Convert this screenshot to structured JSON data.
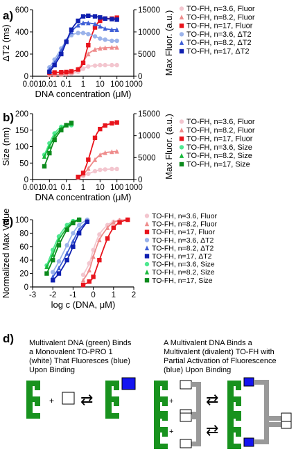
{
  "colors": {
    "pink": "#f3c6cf",
    "salmon": "#ee8c8c",
    "red": "#e8141c",
    "lightblue": "#9bb3ea",
    "blue": "#3f5fd6",
    "navy": "#1020b0",
    "lightgreen": "#4fe890",
    "green": "#18b83a",
    "darkgreen": "#0c8a1c",
    "grey": "#9a9a9a"
  },
  "chart_data": [
    {
      "panel_label": "a)",
      "type": "line",
      "x_scale": "log",
      "xlabel": "DNA concentration (μM)",
      "ylabel_left": "ΔT2 (ms)",
      "ylabel_right": "Max Fluor. (a.u.)",
      "xlim": [
        0.001,
        1000
      ],
      "ylim_left": [
        0,
        600
      ],
      "ylim_right": [
        0,
        15000
      ],
      "x_tick_labels": [
        "0.001",
        "0.01",
        "0.1",
        "1",
        "10",
        "100",
        "1000"
      ],
      "y_tick_labels_left": [
        "0",
        "200",
        "400",
        "600"
      ],
      "y_tick_labels_right": [
        "0",
        "5000",
        "10000",
        "15000"
      ],
      "x": [
        0.01,
        0.02,
        0.05,
        0.1,
        0.2,
        0.5,
        1,
        2,
        5,
        10,
        20,
        50,
        100
      ],
      "series": [
        {
          "name": "TO-FH, n=3.6, Fluor",
          "color": "pink",
          "marker": "circle",
          "axis": "right",
          "values": [
            300,
            330,
            380,
            450,
            600,
            1000,
            1700,
            2200,
            2400,
            2500,
            2500,
            2500,
            2500
          ]
        },
        {
          "name": "TO-FH, n=8.2, Fluor",
          "color": "salmon",
          "marker": "triangle",
          "axis": "right",
          "values": [
            300,
            350,
            420,
            550,
            900,
            1700,
            3200,
            5000,
            6000,
            6300,
            6400,
            6500,
            6500
          ]
        },
        {
          "name": "TO-FH, n=17, Fluor",
          "color": "red",
          "marker": "square",
          "axis": "right",
          "values": [
            800,
            850,
            900,
            950,
            1100,
            1500,
            3000,
            7000,
            11000,
            12500,
            13000,
            13000,
            13200
          ]
        },
        {
          "name": "TO-FH, n=3.6, ΔT2",
          "color": "lightblue",
          "marker": "circle",
          "axis": "left",
          "values": [
            80,
            150,
            250,
            320,
            370,
            390,
            390,
            380,
            360,
            340,
            330,
            320,
            320
          ]
        },
        {
          "name": "TO-FH, n=8.2, ΔT2",
          "color": "blue",
          "marker": "triangle",
          "axis": "left",
          "values": [
            60,
            120,
            230,
            320,
            400,
            460,
            480,
            480,
            470,
            450,
            430,
            420,
            420
          ]
        },
        {
          "name": "TO-FH, n=17, ΔT2",
          "color": "navy",
          "marker": "square",
          "axis": "left",
          "values": [
            40,
            100,
            200,
            310,
            420,
            500,
            540,
            545,
            540,
            530,
            520,
            515,
            510
          ]
        }
      ],
      "legend_position": "right"
    },
    {
      "panel_label": "b)",
      "type": "line",
      "x_scale": "log",
      "xlabel": "DNA concentration (μM)",
      "ylabel_left": "Size (nm)",
      "ylabel_right": "Max Fluor. (a.u.)",
      "xlim": [
        0.001,
        1000
      ],
      "ylim_left": [
        0,
        200
      ],
      "ylim_right": [
        0,
        15000
      ],
      "x_tick_labels": [
        "0.001",
        "0.01",
        "0.1",
        "1",
        "10",
        "100",
        "1000"
      ],
      "y_tick_labels_left": [
        "0",
        "50",
        "100",
        "150",
        "200"
      ],
      "y_tick_labels_right": [
        "0",
        "5000",
        "10000",
        "15000"
      ],
      "series": [
        {
          "name": "TO-FH, n=3.6, Fluor",
          "color": "pink",
          "marker": "circle",
          "axis": "right",
          "x": [
            0.5,
            1,
            2,
            5,
            10,
            20,
            50,
            100
          ],
          "values": [
            400,
            800,
            1300,
            1900,
            2200,
            2300,
            2400,
            2400
          ]
        },
        {
          "name": "TO-FH, n=8.2, Fluor",
          "color": "salmon",
          "marker": "triangle",
          "axis": "right",
          "x": [
            0.5,
            1,
            2,
            5,
            10,
            20,
            50,
            100
          ],
          "values": [
            500,
            1200,
            2500,
            4500,
            5600,
            6100,
            6300,
            6400
          ]
        },
        {
          "name": "TO-FH, n=17, Fluor",
          "color": "red",
          "marker": "square",
          "axis": "right",
          "x": [
            0.5,
            1,
            2,
            5,
            10,
            20,
            50,
            100
          ],
          "values": [
            600,
            1500,
            4500,
            9500,
            11500,
            12300,
            12800,
            13000
          ]
        },
        {
          "name": "TO-FH, n=3.6, Size",
          "color": "lightgreen",
          "marker": "circle",
          "axis": "left",
          "x": [
            0.005,
            0.01,
            0.02,
            0.05,
            0.1,
            0.2
          ],
          "values": [
            75,
            110,
            140,
            160,
            165,
            165
          ]
        },
        {
          "name": "TO-FH, n=8.2, Size",
          "color": "green",
          "marker": "triangle",
          "axis": "left",
          "x": [
            0.005,
            0.01,
            0.02,
            0.05,
            0.1,
            0.2
          ],
          "values": [
            70,
            100,
            130,
            155,
            165,
            170
          ]
        },
        {
          "name": "TO-FH, n=17, Size",
          "color": "darkgreen",
          "marker": "square",
          "axis": "left",
          "x": [
            0.005,
            0.01,
            0.02,
            0.05,
            0.1,
            0.2
          ],
          "values": [
            40,
            80,
            120,
            150,
            165,
            172
          ]
        }
      ],
      "legend_position": "right"
    },
    {
      "panel_label": "c)",
      "type": "line",
      "xlabel": "log c (DNA, μM)",
      "ylabel": "Normalized Max Value",
      "xlim": [
        -3,
        2
      ],
      "ylim": [
        0,
        100
      ],
      "x_tick_labels": [
        "-3",
        "-2",
        "-1",
        "0",
        "1",
        "2"
      ],
      "y_tick_labels": [
        "0",
        "20",
        "40",
        "60",
        "80",
        "100"
      ],
      "series": [
        {
          "name": "TO-FH, n=3.6, Fluor",
          "color": "pink",
          "marker": "circle",
          "x": [
            -0.5,
            -0.2,
            0,
            0.3,
            0.7,
            1,
            1.3,
            1.7
          ],
          "values": [
            18,
            35,
            55,
            78,
            92,
            97,
            99,
            100
          ]
        },
        {
          "name": "TO-FH, n=8.2, Fluor",
          "color": "salmon",
          "marker": "triangle",
          "x": [
            -0.5,
            -0.2,
            0,
            0.3,
            0.7,
            1,
            1.3,
            1.7
          ],
          "values": [
            10,
            25,
            45,
            70,
            88,
            96,
            99,
            100
          ]
        },
        {
          "name": "TO-FH, n=17, Fluor",
          "color": "red",
          "marker": "square",
          "x": [
            -0.5,
            -0.2,
            0,
            0.3,
            0.7,
            1,
            1.3,
            1.7
          ],
          "values": [
            3,
            8,
            15,
            40,
            72,
            88,
            96,
            100
          ]
        },
        {
          "name": "TO-FH, n=3.6, ΔT2",
          "color": "lightblue",
          "marker": "circle",
          "x": [
            -2,
            -1.7,
            -1.3,
            -1,
            -0.7,
            -0.3
          ],
          "values": [
            22,
            38,
            62,
            80,
            92,
            100
          ]
        },
        {
          "name": "TO-FH, n=8.2, ΔT2",
          "color": "blue",
          "marker": "triangle",
          "x": [
            -2,
            -1.7,
            -1.3,
            -1,
            -0.7,
            -0.3
          ],
          "values": [
            15,
            28,
            50,
            68,
            85,
            98
          ]
        },
        {
          "name": "TO-FH, n=17, ΔT2",
          "color": "navy",
          "marker": "square",
          "x": [
            -2,
            -1.7,
            -1.3,
            -1,
            -0.7,
            -0.3
          ],
          "values": [
            10,
            20,
            40,
            60,
            80,
            97
          ]
        },
        {
          "name": "TO-FH, n=3.6, Size",
          "color": "lightgreen",
          "marker": "circle",
          "x": [
            -2.3,
            -2,
            -1.7,
            -1.3,
            -1,
            -0.7
          ],
          "values": [
            32,
            55,
            75,
            92,
            98,
            100
          ]
        },
        {
          "name": "TO-FH, n=8.2, Size",
          "color": "green",
          "marker": "triangle",
          "x": [
            -2.3,
            -2,
            -1.7,
            -1.3,
            -1,
            -0.7
          ],
          "values": [
            30,
            48,
            70,
            88,
            97,
            100
          ]
        },
        {
          "name": "TO-FH, n=17, Size",
          "color": "darkgreen",
          "marker": "square",
          "x": [
            -2.3,
            -2,
            -1.7,
            -1.3,
            -1,
            -0.7
          ],
          "values": [
            20,
            40,
            62,
            85,
            95,
            100
          ]
        }
      ],
      "legend_position": "right"
    }
  ],
  "panel_d": {
    "label": "d)",
    "left_caption": [
      "Multivalent DNA (green) Binds",
      "a Monovalent  TO-PRO 1",
      "(white) That Fluoresces  (blue)",
      "Upon Binding"
    ],
    "right_caption": [
      "A Multivalent DNA Binds a",
      "Multivalent (divalent)  TO-FH with",
      "Partial Activation of Fluorescence",
      "(blue) Upon Binding"
    ],
    "plus": "+",
    "equilibrium_arrow": "⇄"
  }
}
